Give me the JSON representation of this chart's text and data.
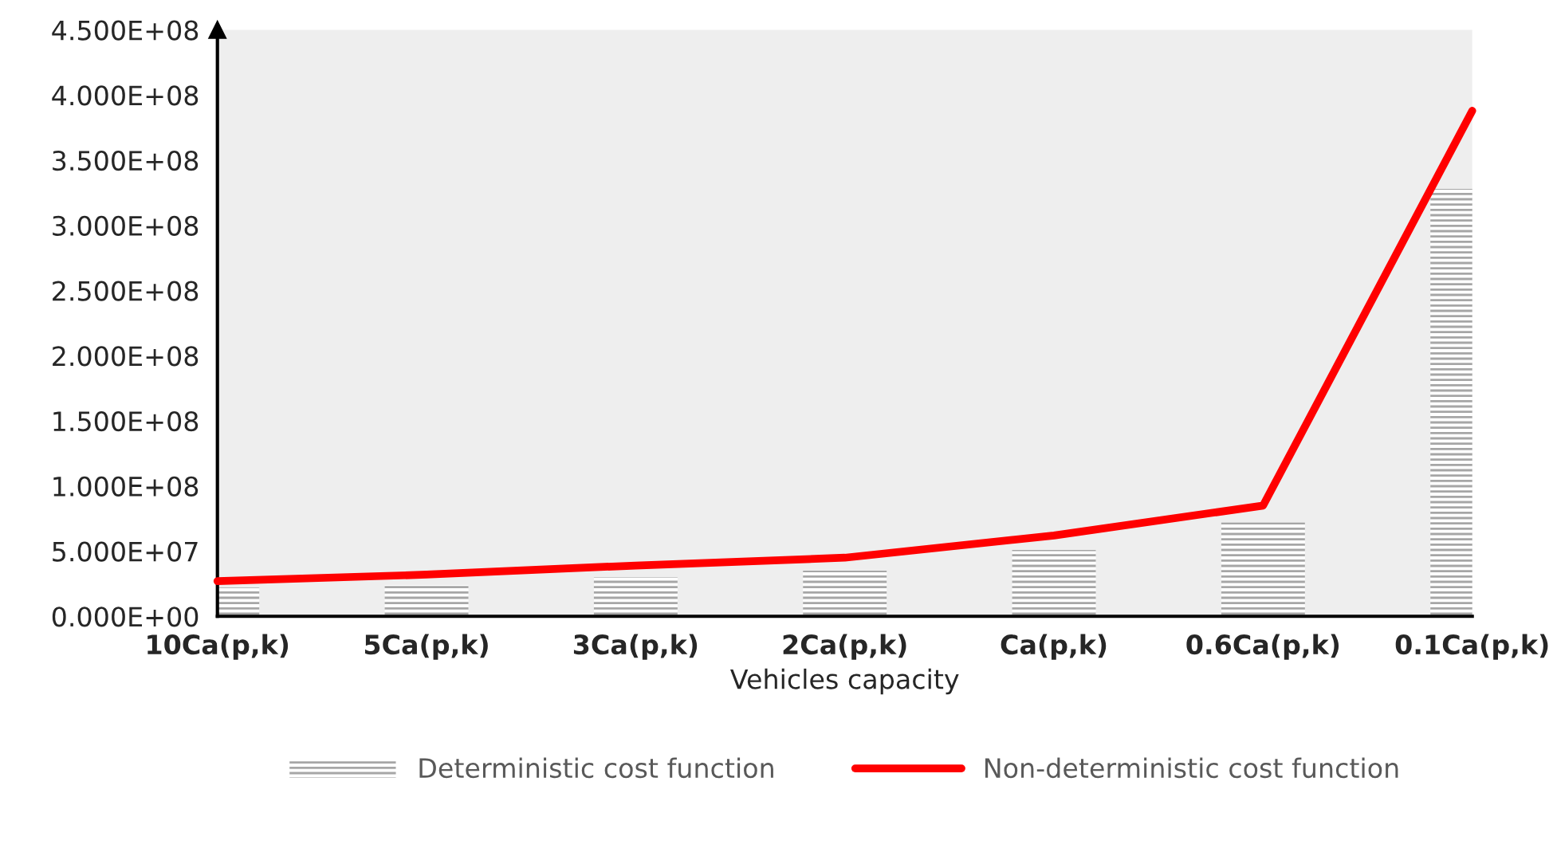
{
  "chart_data": {
    "type": "bar",
    "xlabel": "Vehicles capacity",
    "categories": [
      "10Ca(p,k)",
      "5Ca(p,k)",
      "3Ca(p,k)",
      "2Ca(p,k)",
      "Ca(p,k)",
      "0.6Ca(p,k)",
      "0.1Ca(p,k)"
    ],
    "series": [
      {
        "name": "Deterministic cost function",
        "color": "#a6a6a6",
        "values": [
          22000000,
          24000000,
          30000000,
          35000000,
          51000000,
          72000000,
          328000000
        ]
      },
      {
        "name": "Non-deterministic cost function",
        "type": "line",
        "color": "#ff0000",
        "values": [
          27000000,
          32000000,
          39000000,
          45000000,
          62000000,
          85000000,
          388000000
        ]
      }
    ],
    "ylim": [
      0,
      450000000
    ],
    "yticks": [
      {
        "value": 0,
        "label": "0.000E+00"
      },
      {
        "value": 50000000,
        "label": "5.000E+07"
      },
      {
        "value": 100000000,
        "label": "1.000E+08"
      },
      {
        "value": 150000000,
        "label": "1.500E+08"
      },
      {
        "value": 200000000,
        "label": "2.000E+08"
      },
      {
        "value": 250000000,
        "label": "2.500E+08"
      },
      {
        "value": 300000000,
        "label": "3.000E+08"
      },
      {
        "value": 350000000,
        "label": "3.500E+08"
      },
      {
        "value": 400000000,
        "label": "4.000E+08"
      },
      {
        "value": 450000000,
        "label": "4.500E+08"
      }
    ],
    "grid": false,
    "legend": "bottom",
    "marker": "none",
    "line_style": "solid"
  }
}
